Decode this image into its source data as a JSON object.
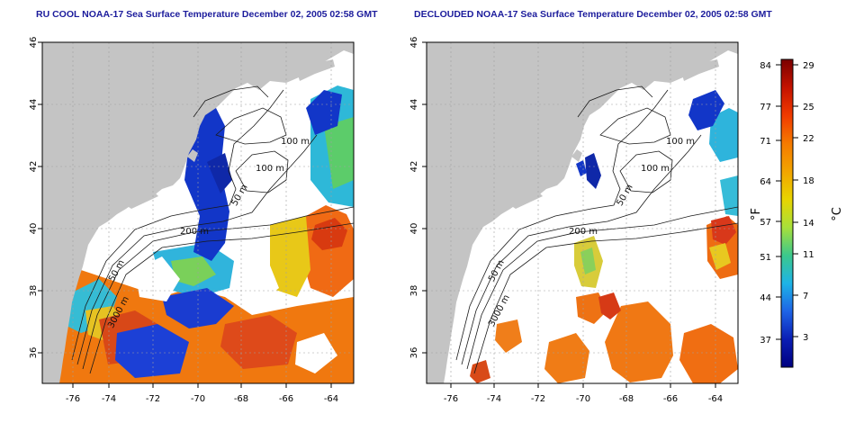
{
  "panels": [
    {
      "title": "RU COOL NOAA-17 Sea Surface Temperature December 02, 2005 02:58 GMT",
      "x_ticks": [
        "-76",
        "-74",
        "-72",
        "-70",
        "-68",
        "-66",
        "-64"
      ],
      "y_ticks": [
        "46",
        "44",
        "42",
        "40",
        "38",
        "36"
      ],
      "contour_labels": [
        "100 m",
        "100 m",
        "50 m",
        "200 m",
        "50 m",
        "3000 m"
      ]
    },
    {
      "title": "DECLOUDED NOAA-17 Sea Surface Temperature December 02, 2005 02:58 GMT",
      "x_ticks": [
        "-76",
        "-74",
        "-72",
        "-70",
        "-68",
        "-66",
        "-64"
      ],
      "y_ticks": [
        "46",
        "44",
        "42",
        "40",
        "38",
        "36"
      ],
      "contour_labels": [
        "100 m",
        "100 m",
        "50 m",
        "200 m",
        "50 m",
        "3000 m"
      ]
    }
  ],
  "colorbar": {
    "f_ticks": [
      "84",
      "77",
      "71",
      "64",
      "57",
      "51",
      "44",
      "37"
    ],
    "c_ticks": [
      "29",
      "25",
      "22",
      "18",
      "14",
      "11",
      "7",
      "3"
    ],
    "f_label": "°F",
    "c_label": "°C",
    "colors": [
      "#7a0000",
      "#c41200",
      "#f03a00",
      "#f57a00",
      "#f2a400",
      "#e8d400",
      "#a8e03a",
      "#3cc88c",
      "#1eb4e6",
      "#1e64e6",
      "#0a1eb4",
      "#000080"
    ]
  },
  "map_colors": {
    "land": "#c4c4c4",
    "cloud": "#ffffff",
    "cold": "#1236c8",
    "warm": "#f08218"
  }
}
